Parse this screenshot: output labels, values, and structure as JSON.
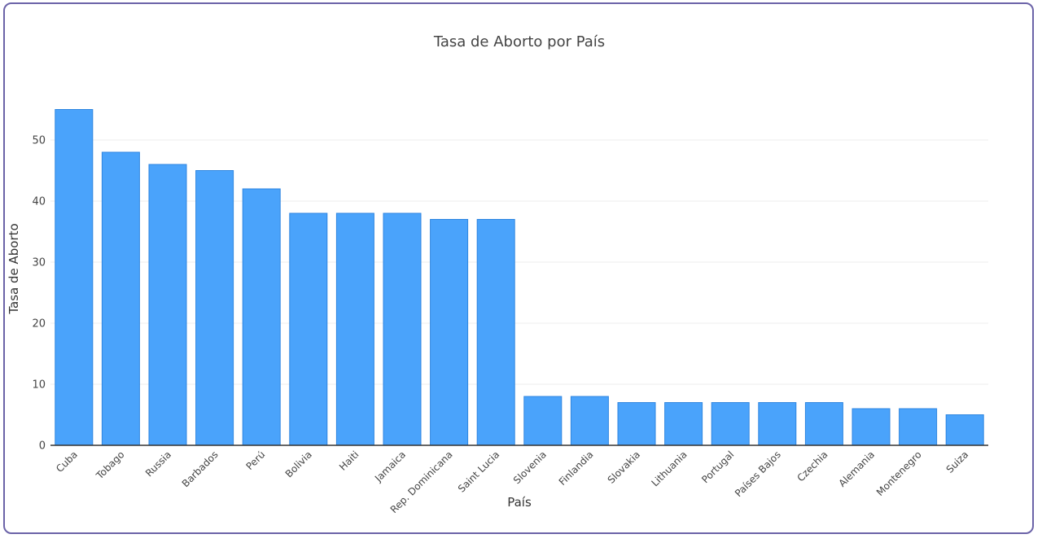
{
  "chart_data": {
    "type": "bar",
    "title": "Tasa de Aborto por País",
    "xlabel": "País",
    "ylabel": "Tasa de Aborto",
    "ylim": [
      0,
      60
    ],
    "yticks": [
      0,
      10,
      20,
      30,
      40,
      50
    ],
    "grid": true,
    "colors": {
      "bar_fill": "#4aa3fb",
      "bar_stroke": "#2f86e0",
      "frame": "#6b63a8"
    },
    "categories": [
      "Cuba",
      "Tobago",
      "Russia",
      "Barbados",
      "Perú",
      "Bolivia",
      "Haiti",
      "Jamaica",
      "Rep. Dominicana",
      "Saint Lucia",
      "Slovenia",
      "Finlandia",
      "Slovakia",
      "Lithuania",
      "Portugal",
      "Países Bajos",
      "Czechia",
      "Alemania",
      "Montenegro",
      "Suiza"
    ],
    "values": [
      55,
      48,
      46,
      45,
      42,
      38,
      38,
      38,
      37,
      37,
      8,
      8,
      7,
      7,
      7,
      7,
      7,
      6,
      6,
      5
    ]
  }
}
